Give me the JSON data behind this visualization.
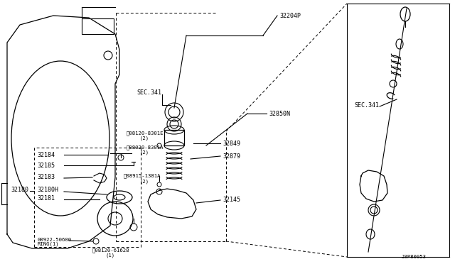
{
  "bg_color": "#ffffff",
  "line_color": "#000000",
  "diagram_id": "J3P80053",
  "parts": {
    "sec341_left": "SEC.341",
    "sec341_right": "SEC.341",
    "part_32204P": "32204P",
    "part_32850N": "32850N",
    "part_32849": "32849",
    "part_32879": "32879",
    "part_32145": "32145",
    "part_32184": "32184",
    "part_32185": "32185",
    "part_32183": "32183",
    "part_32180H": "32180H",
    "part_32181": "32181",
    "part_32180": "32180",
    "part_00922_50600": "00922-50600",
    "part_ring1": "RING(1)",
    "part_08120_61628": "08120-61628",
    "part_08120_61628_qty": "(1)",
    "part_08120_8301E": "08120-8301E",
    "part_08120_8301E_qty": "(2)",
    "part_08020_8301A": "08020-8301A",
    "part_08020_8301A_qty": "(2)",
    "part_08915_1381A": "08915-1381A",
    "part_08915_1381A_qty": "(2)"
  }
}
